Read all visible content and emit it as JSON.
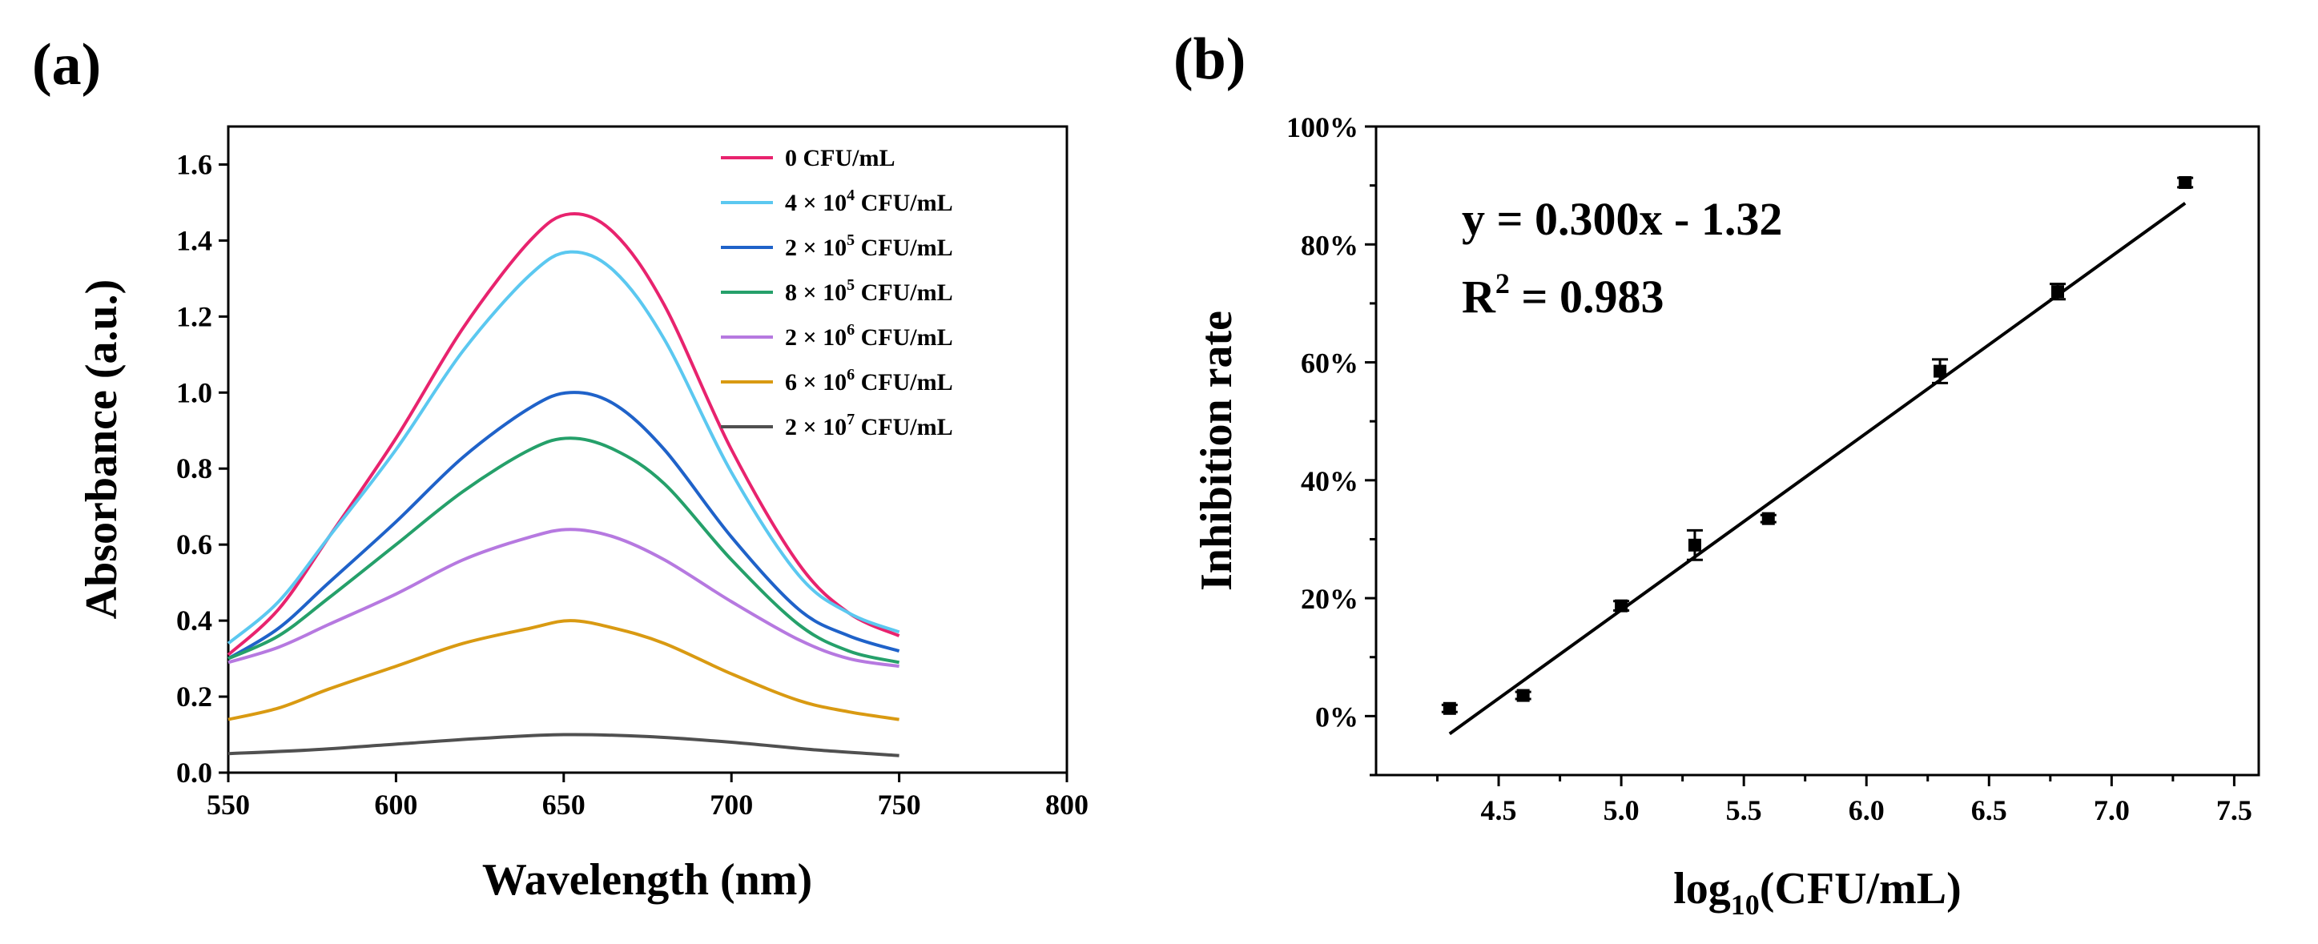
{
  "chart_data": [
    {
      "panel": "(a)",
      "type": "line",
      "xlabel": "Wavelength (nm)",
      "ylabel": "Absorbance (a.u.)",
      "xlim": [
        550,
        800
      ],
      "ylim": [
        0.0,
        1.7
      ],
      "xticks": [
        550,
        600,
        650,
        700,
        750,
        800
      ],
      "yticks": [
        "0.0",
        "0.2",
        "0.4",
        "0.6",
        "0.8",
        "1.0",
        "1.2",
        "1.4",
        "1.6"
      ],
      "legend_position": "top-right",
      "series": [
        {
          "name_pre": "0 CFU/mL",
          "name_sup": "",
          "name_post": "",
          "color": "#e8236e",
          "x": [
            550,
            565,
            580,
            600,
            620,
            640,
            652,
            665,
            680,
            700,
            720,
            735,
            750
          ],
          "y": [
            0.31,
            0.43,
            0.62,
            0.88,
            1.17,
            1.4,
            1.47,
            1.42,
            1.23,
            0.85,
            0.55,
            0.42,
            0.36
          ]
        },
        {
          "name_pre": "4 × 10",
          "name_sup": "4",
          "name_post": " CFU/mL",
          "color": "#5bc8f0",
          "x": [
            550,
            565,
            580,
            600,
            620,
            640,
            652,
            665,
            680,
            700,
            720,
            735,
            750
          ],
          "y": [
            0.34,
            0.45,
            0.62,
            0.85,
            1.11,
            1.31,
            1.37,
            1.32,
            1.14,
            0.79,
            0.52,
            0.42,
            0.37
          ]
        },
        {
          "name_pre": "2 × 10",
          "name_sup": "5",
          "name_post": " CFU/mL",
          "color": "#1f62c9",
          "x": [
            550,
            565,
            580,
            600,
            620,
            640,
            652,
            665,
            680,
            700,
            720,
            735,
            750
          ],
          "y": [
            0.3,
            0.38,
            0.5,
            0.66,
            0.83,
            0.96,
            1.0,
            0.97,
            0.85,
            0.62,
            0.43,
            0.36,
            0.32
          ]
        },
        {
          "name_pre": "8 × 10",
          "name_sup": "5",
          "name_post": " CFU/mL",
          "color": "#25a06a",
          "x": [
            550,
            565,
            580,
            600,
            620,
            640,
            652,
            665,
            680,
            700,
            720,
            735,
            750
          ],
          "y": [
            0.3,
            0.36,
            0.46,
            0.6,
            0.74,
            0.85,
            0.88,
            0.85,
            0.76,
            0.56,
            0.39,
            0.32,
            0.29
          ]
        },
        {
          "name_pre": "2 × 10",
          "name_sup": "6",
          "name_post": " CFU/mL",
          "color": "#b679e0",
          "x": [
            550,
            565,
            580,
            600,
            620,
            640,
            652,
            665,
            680,
            700,
            720,
            735,
            750
          ],
          "y": [
            0.29,
            0.33,
            0.39,
            0.47,
            0.56,
            0.62,
            0.64,
            0.62,
            0.56,
            0.45,
            0.35,
            0.3,
            0.28
          ]
        },
        {
          "name_pre": "6 × 10",
          "name_sup": "6",
          "name_post": " CFU/mL",
          "color": "#d99a12",
          "x": [
            550,
            565,
            580,
            600,
            620,
            640,
            652,
            665,
            680,
            700,
            720,
            735,
            750
          ],
          "y": [
            0.14,
            0.17,
            0.22,
            0.28,
            0.34,
            0.38,
            0.4,
            0.38,
            0.34,
            0.26,
            0.19,
            0.16,
            0.14
          ]
        },
        {
          "name_pre": "2 × 10",
          "name_sup": "7",
          "name_post": " CFU/mL",
          "color": "#505050",
          "x": [
            550,
            575,
            600,
            625,
            650,
            675,
            700,
            725,
            750
          ],
          "y": [
            0.05,
            0.06,
            0.075,
            0.09,
            0.1,
            0.095,
            0.08,
            0.06,
            0.045
          ]
        }
      ]
    },
    {
      "panel": "(b)",
      "type": "scatter",
      "xlabel_pre": "log",
      "xlabel_sub": "10",
      "xlabel_post": "(CFU/mL)",
      "ylabel": "Inhibition rate",
      "xlim": [
        4.0,
        7.6
      ],
      "ylim": [
        -10,
        100
      ],
      "xticks": [
        "4.5",
        "5.0",
        "5.5",
        "6.0",
        "6.5",
        "7.0",
        "7.5"
      ],
      "yticks": [
        "0%",
        "20%",
        "40%",
        "60%",
        "80%",
        "100%"
      ],
      "points": {
        "x": [
          4.3,
          4.6,
          5.0,
          5.3,
          5.6,
          6.3,
          6.78,
          7.3
        ],
        "y": [
          1.3,
          3.5,
          18.7,
          29.0,
          33.5,
          58.5,
          72.0,
          90.5
        ],
        "err": [
          0.6,
          0.6,
          0.8,
          2.5,
          0.6,
          2.0,
          1.3,
          0.8
        ]
      },
      "fit": {
        "slope": 0.3,
        "intercept": -1.32,
        "x_range": [
          4.3,
          7.3
        ]
      },
      "equation": "y = 0.300x - 1.32",
      "r2_pre": "R",
      "r2_sup": "2",
      "r2_post": " = 0.983"
    }
  ]
}
